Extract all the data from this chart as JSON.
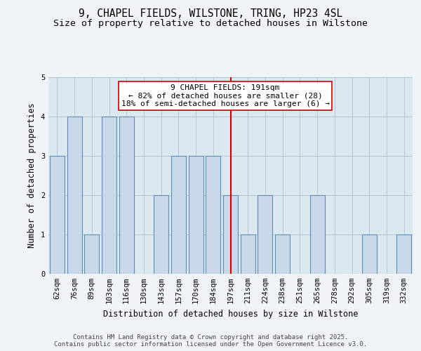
{
  "title": "9, CHAPEL FIELDS, WILSTONE, TRING, HP23 4SL",
  "subtitle": "Size of property relative to detached houses in Wilstone",
  "xlabel": "Distribution of detached houses by size in Wilstone",
  "ylabel": "Number of detached properties",
  "categories": [
    "62sqm",
    "76sqm",
    "89sqm",
    "103sqm",
    "116sqm",
    "130sqm",
    "143sqm",
    "157sqm",
    "170sqm",
    "184sqm",
    "197sqm",
    "211sqm",
    "224sqm",
    "238sqm",
    "251sqm",
    "265sqm",
    "278sqm",
    "292sqm",
    "305sqm",
    "319sqm",
    "332sqm"
  ],
  "values": [
    3,
    4,
    1,
    4,
    4,
    0,
    2,
    3,
    3,
    3,
    2,
    1,
    2,
    1,
    0,
    2,
    0,
    0,
    1,
    0,
    1
  ],
  "bar_color": "#c8d8e8",
  "bar_edge_color": "#5b8db8",
  "highlight_index": 10,
  "highlight_line_color": "#cc0000",
  "annotation_text": "9 CHAPEL FIELDS: 191sqm\n← 82% of detached houses are smaller (28)\n18% of semi-detached houses are larger (6) →",
  "annotation_box_color": "#ffffff",
  "annotation_box_edge_color": "#cc0000",
  "ylim": [
    0,
    5
  ],
  "yticks": [
    0,
    1,
    2,
    3,
    4,
    5
  ],
  "background_color": "#f0f4f8",
  "plot_bg_color": "#dce8f0",
  "footer_text": "Contains HM Land Registry data © Crown copyright and database right 2025.\nContains public sector information licensed under the Open Government Licence v3.0.",
  "title_fontsize": 10.5,
  "subtitle_fontsize": 9.5,
  "axis_label_fontsize": 8.5,
  "tick_fontsize": 7.5,
  "annotation_fontsize": 8,
  "footer_fontsize": 6.5
}
